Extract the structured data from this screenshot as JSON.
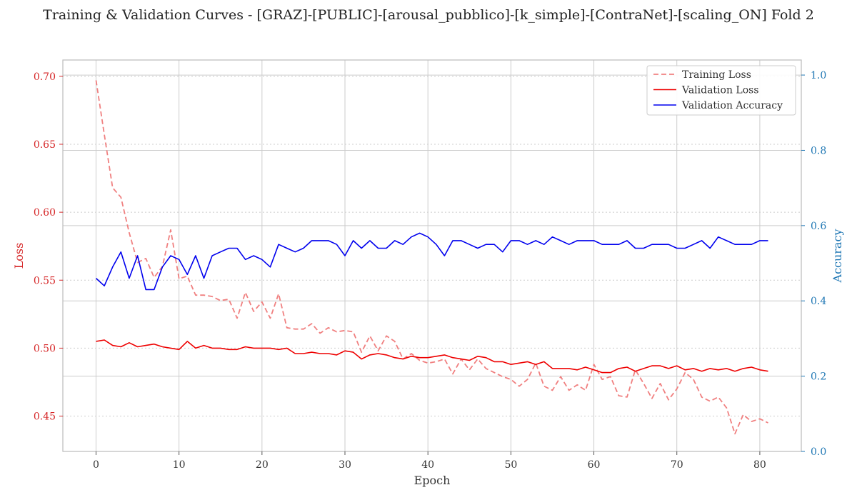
{
  "chart_data": {
    "type": "line",
    "title": "Training & Validation Curves - [GRAZ]-[PUBLIC]-[arousal_pubblico]-[k_simple]-[ContraNet]-[scaling_ON] Fold 2",
    "xlabel": "Epoch",
    "ylabel_left": "Loss",
    "ylabel_right": "Accuracy",
    "xlim": [
      -4,
      85
    ],
    "ylim_left": [
      0.424,
      0.712
    ],
    "ylim_right": [
      0.0,
      1.04
    ],
    "xticks": [
      0,
      10,
      20,
      30,
      40,
      50,
      60,
      70,
      80
    ],
    "yticks_left": [
      0.45,
      0.5,
      0.55,
      0.6,
      0.65,
      0.7
    ],
    "yticks_left_labels": [
      "0.45",
      "0.50",
      "0.55",
      "0.60",
      "0.65",
      "0.70"
    ],
    "yticks_right": [
      0.0,
      0.2,
      0.4,
      0.6,
      0.8,
      1.0
    ],
    "yticks_right_labels": [
      "0.0",
      "0.2",
      "0.4",
      "0.6",
      "0.8",
      "1.0"
    ],
    "grid": true,
    "legend_position": "top-right",
    "colors": {
      "left_axis": "#d62728",
      "right_axis": "#1f77b4",
      "train_loss": "#f08080",
      "val_loss": "#ee0000",
      "val_acc": "#0000ee",
      "grid": "#cccccc",
      "frame": "#bbbbbb"
    },
    "x": [
      0,
      1,
      2,
      3,
      4,
      5,
      6,
      7,
      8,
      9,
      10,
      11,
      12,
      13,
      14,
      15,
      16,
      17,
      18,
      19,
      20,
      21,
      22,
      23,
      24,
      25,
      26,
      27,
      28,
      29,
      30,
      31,
      32,
      33,
      34,
      35,
      36,
      37,
      38,
      39,
      40,
      41,
      42,
      43,
      44,
      45,
      46,
      47,
      48,
      49,
      50,
      51,
      52,
      53,
      54,
      55,
      56,
      57,
      58,
      59,
      60,
      61,
      62,
      63,
      64,
      65,
      66,
      67,
      68,
      69,
      70,
      71,
      72,
      73,
      74,
      75,
      76,
      77,
      78,
      79,
      80,
      81
    ],
    "series": [
      {
        "name": "Training Loss",
        "axis": "left",
        "style": "dashed",
        "values": [
          0.697,
          0.657,
          0.618,
          0.611,
          0.585,
          0.563,
          0.566,
          0.552,
          0.56,
          0.587,
          0.551,
          0.553,
          0.539,
          0.539,
          0.538,
          0.535,
          0.536,
          0.522,
          0.541,
          0.527,
          0.534,
          0.522,
          0.54,
          0.515,
          0.514,
          0.514,
          0.518,
          0.511,
          0.515,
          0.512,
          0.513,
          0.512,
          0.497,
          0.509,
          0.498,
          0.509,
          0.505,
          0.492,
          0.496,
          0.491,
          0.489,
          0.49,
          0.492,
          0.481,
          0.492,
          0.484,
          0.492,
          0.485,
          0.482,
          0.479,
          0.477,
          0.472,
          0.477,
          0.489,
          0.472,
          0.469,
          0.479,
          0.469,
          0.473,
          0.469,
          0.488,
          0.477,
          0.479,
          0.465,
          0.464,
          0.484,
          0.474,
          0.463,
          0.474,
          0.462,
          0.47,
          0.482,
          0.477,
          0.464,
          0.461,
          0.464,
          0.456,
          0.437,
          0.451,
          0.446,
          0.448,
          0.445
        ]
      },
      {
        "name": "Validation Loss",
        "axis": "left",
        "style": "solid",
        "values": [
          0.505,
          0.506,
          0.502,
          0.501,
          0.504,
          0.501,
          0.502,
          0.503,
          0.501,
          0.5,
          0.499,
          0.505,
          0.5,
          0.502,
          0.5,
          0.5,
          0.499,
          0.499,
          0.501,
          0.5,
          0.5,
          0.5,
          0.499,
          0.5,
          0.496,
          0.496,
          0.497,
          0.496,
          0.496,
          0.495,
          0.498,
          0.497,
          0.492,
          0.495,
          0.496,
          0.495,
          0.493,
          0.492,
          0.494,
          0.493,
          0.493,
          0.494,
          0.495,
          0.493,
          0.492,
          0.491,
          0.494,
          0.493,
          0.49,
          0.49,
          0.488,
          0.489,
          0.49,
          0.488,
          0.49,
          0.485,
          0.485,
          0.485,
          0.484,
          0.486,
          0.484,
          0.482,
          0.482,
          0.485,
          0.486,
          0.483,
          0.485,
          0.487,
          0.487,
          0.485,
          0.487,
          0.484,
          0.485,
          0.483,
          0.485,
          0.484,
          0.485,
          0.483,
          0.485,
          0.486,
          0.484,
          0.483
        ]
      },
      {
        "name": "Validation Accuracy",
        "axis": "right",
        "style": "solid",
        "values": [
          0.46,
          0.44,
          0.49,
          0.53,
          0.46,
          0.52,
          0.43,
          0.43,
          0.49,
          0.52,
          0.51,
          0.47,
          0.52,
          0.46,
          0.52,
          0.53,
          0.54,
          0.54,
          0.51,
          0.52,
          0.51,
          0.49,
          0.55,
          0.54,
          0.53,
          0.54,
          0.56,
          0.56,
          0.56,
          0.55,
          0.52,
          0.56,
          0.54,
          0.56,
          0.54,
          0.54,
          0.56,
          0.55,
          0.57,
          0.58,
          0.57,
          0.55,
          0.52,
          0.56,
          0.56,
          0.55,
          0.54,
          0.55,
          0.55,
          0.53,
          0.56,
          0.56,
          0.55,
          0.56,
          0.55,
          0.57,
          0.56,
          0.55,
          0.56,
          0.56,
          0.56,
          0.55,
          0.55,
          0.55,
          0.56,
          0.54,
          0.54,
          0.55,
          0.55,
          0.55,
          0.54,
          0.54,
          0.55,
          0.56,
          0.54,
          0.57,
          0.56,
          0.55,
          0.55,
          0.55,
          0.56,
          0.56
        ]
      }
    ]
  }
}
